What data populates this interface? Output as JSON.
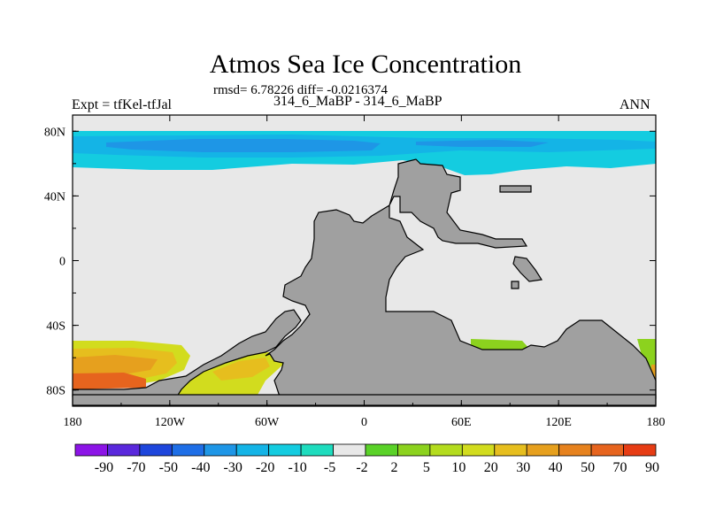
{
  "chart_data": {
    "type": "heatmap",
    "title": "Atmos Sea Ice Concentration",
    "stats": "rmsd= 6.78226 diff= -0.0216374",
    "experiment": "Expt = tfKel-tfJal",
    "period": "314_6_MaBP - 314_6_MaBP",
    "season": "ANN",
    "projection": "cylindrical equidistant",
    "x_ticks": [
      "180",
      "120W",
      "60W",
      "0",
      "60E",
      "120E",
      "180"
    ],
    "y_ticks": [
      "80N",
      "40N",
      "0",
      "40S",
      "80S"
    ],
    "xlim": [
      -180,
      180
    ],
    "ylim": [
      -90,
      90
    ],
    "land_color": "#a0a0a0",
    "zero_color": "#e8e8e8",
    "colorbar": {
      "labels": [
        "-90",
        "-70",
        "-50",
        "-40",
        "-30",
        "-20",
        "-10",
        "-5",
        "-2",
        "2",
        "5",
        "10",
        "20",
        "30",
        "40",
        "50",
        "70",
        "90"
      ],
      "colors": [
        "#8c14e6",
        "#5a28dc",
        "#1e46dc",
        "#1e6ee6",
        "#1e96e6",
        "#14b4e6",
        "#14cce0",
        "#1edcbe",
        "#e8e8e8",
        "#5ad228",
        "#8cd21e",
        "#b4dc1e",
        "#d2dc1e",
        "#e6be1e",
        "#e6a01e",
        "#e6821e",
        "#e6641e",
        "#e63c14"
      ]
    }
  }
}
